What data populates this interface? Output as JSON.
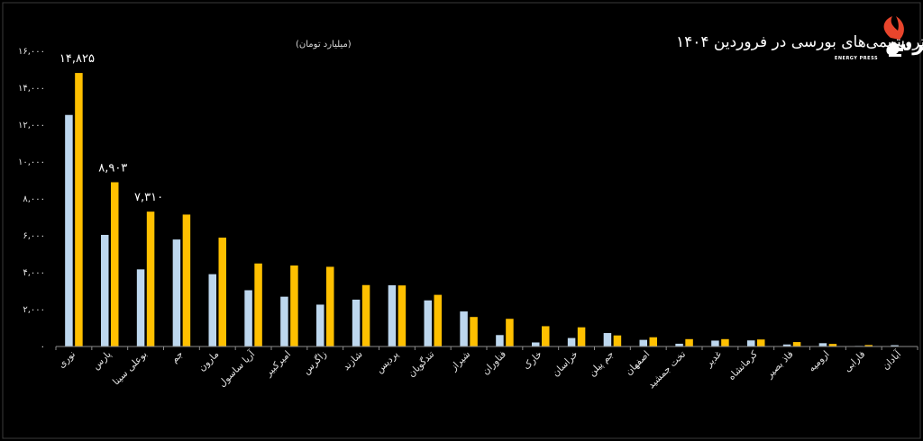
{
  "chart_data": {
    "type": "bar",
    "title": "پردرآمدترین پتروشیمی‌های بورسی در فروردین ۱۴۰۴",
    "subtitle": "(میلیارد تومان)",
    "ylim": [
      0,
      16000
    ],
    "yticks": [
      {
        "value": 0,
        "label": "۰"
      },
      {
        "value": 2000,
        "label": "۲,۰۰۰"
      },
      {
        "value": 4000,
        "label": "۴,۰۰۰"
      },
      {
        "value": 6000,
        "label": "۶,۰۰۰"
      },
      {
        "value": 8000,
        "label": "۸,۰۰۰"
      },
      {
        "value": 10000,
        "label": "۱۰,۰۰۰"
      },
      {
        "value": 12000,
        "label": "۱۲,۰۰۰"
      },
      {
        "value": 14000,
        "label": "۱۴,۰۰۰"
      },
      {
        "value": 16000,
        "label": "۱۶,۰۰۰"
      }
    ],
    "grid": false,
    "legend": "none",
    "categories": [
      "نوری",
      "پارس",
      "بوعلی سینا",
      "جم",
      "مارون",
      "آریا ساسول",
      "امیرکبیر",
      "زاگرس",
      "شازند",
      "پردیس",
      "تندگویان",
      "شیراز",
      "فناوران",
      "خارک",
      "خراسان",
      "جم پیلن",
      "اصفهان",
      "تخت جمشید",
      "غدیر",
      "کرمانشاه",
      "فاذ بصیر",
      "ارومیه",
      "فارابی",
      "آبادان"
    ],
    "series": [
      {
        "color": "#bdd7ee",
        "values": [
          12550,
          6050,
          4180,
          5800,
          3920,
          3050,
          2700,
          2270,
          2540,
          3320,
          2500,
          1900,
          620,
          220,
          460,
          730,
          360,
          150,
          320,
          330,
          110,
          180,
          30,
          70
        ]
      },
      {
        "color": "#ffc000",
        "values": [
          14825,
          8903,
          7310,
          7150,
          5900,
          4500,
          4390,
          4320,
          3330,
          3310,
          2800,
          1600,
          1500,
          1100,
          1040,
          600,
          500,
          400,
          400,
          380,
          240,
          140,
          80,
          20
        ]
      }
    ],
    "data_labels": [
      {
        "category_index": 0,
        "series_index": 1,
        "text": "۱۴,۸۲۵"
      },
      {
        "category_index": 1,
        "series_index": 1,
        "text": "۸,۹۰۳"
      },
      {
        "category_index": 2,
        "series_index": 1,
        "text": "۷,۳۱۰"
      }
    ]
  },
  "colors": {
    "background": "#000000",
    "axis": "#8c8c8c",
    "text": "#e6e6e6",
    "logo_accent": "#e8452c"
  },
  "logo": {
    "name": "انرژی پرس",
    "subtitle": "ENERGY PRESS"
  }
}
